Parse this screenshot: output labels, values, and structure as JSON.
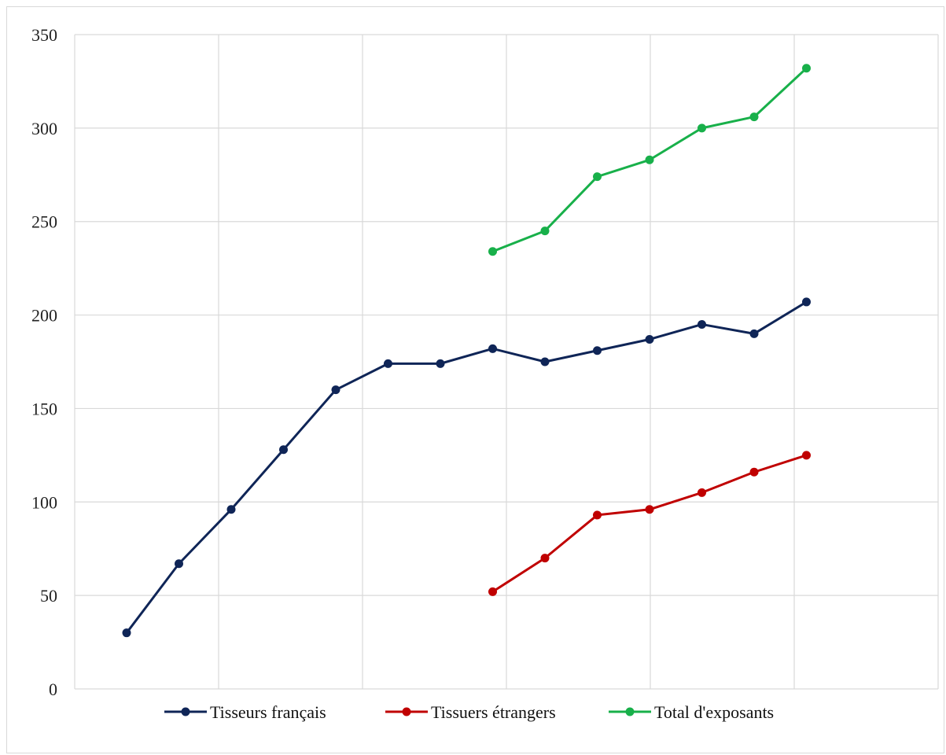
{
  "chart_data": {
    "type": "line",
    "title": "",
    "xlabel": "",
    "ylabel": "",
    "ylim": [
      0,
      350
    ],
    "yticks": [
      0,
      50,
      100,
      150,
      200,
      250,
      300,
      350
    ],
    "yticks_labels": [
      "0",
      "50",
      "100",
      "150",
      "200",
      "250",
      "300",
      "350"
    ],
    "grid": true,
    "legend_position": "bottom",
    "x": [
      1,
      2,
      3,
      4,
      5,
      6,
      7,
      8,
      9,
      10,
      11,
      12,
      13,
      14
    ],
    "series": [
      {
        "name": "Tisseurs français",
        "color": "#0f2557",
        "values": [
          30,
          67,
          96,
          128,
          160,
          174,
          174,
          182,
          175,
          181,
          187,
          195,
          190,
          207
        ]
      },
      {
        "name": "Tissuers étrangers",
        "color": "#c00000",
        "values": [
          null,
          null,
          null,
          null,
          null,
          null,
          null,
          52,
          70,
          93,
          96,
          105,
          116,
          125
        ]
      },
      {
        "name": "Total d'exposants",
        "color": "#18b04a",
        "values": [
          null,
          null,
          null,
          null,
          null,
          null,
          null,
          234,
          245,
          274,
          283,
          300,
          306,
          332
        ]
      }
    ]
  }
}
